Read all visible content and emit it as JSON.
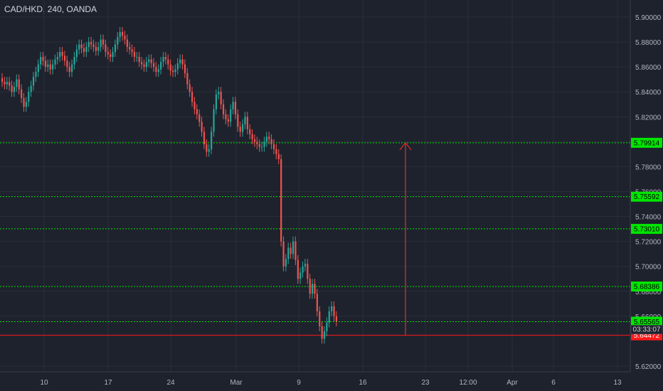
{
  "chart_data": {
    "type": "candlestick",
    "title": "CAD/HKD, 240, OANDA",
    "ylim": [
      5.614,
      5.905
    ],
    "y_ticks": [
      5.62,
      5.66,
      5.68,
      5.7,
      5.72,
      5.74,
      5.76,
      5.78,
      5.8,
      5.82,
      5.84,
      5.86,
      5.88,
      5.9
    ],
    "x_ticks": [
      "10",
      "17",
      "24",
      "Mar",
      "9",
      "16",
      "23",
      "12:00",
      "Apr",
      "6",
      "13"
    ],
    "grid": true,
    "horizontal_levels": [
      {
        "label": "5.79914",
        "value": 5.79914,
        "color": "#00e600",
        "text_color": "#000000"
      },
      {
        "label": "5.75592",
        "value": 5.75592,
        "color": "#00e600",
        "text_color": "#000000"
      },
      {
        "label": "5.73010",
        "value": 5.7301,
        "color": "#00e600",
        "text_color": "#000000"
      },
      {
        "label": "5.68386",
        "value": 5.68386,
        "color": "#00e600",
        "text_color": "#000000"
      },
      {
        "label": "5.65565",
        "value": 5.65565,
        "color": "#00e600",
        "text_color": "#000000"
      },
      {
        "label": "5.64472",
        "value": 5.64472,
        "color": "#ff1a1a",
        "text_color": "#ffffff"
      }
    ],
    "countdown": "03:33:07",
    "projection_arrow": {
      "from": 5.64472,
      "to": 5.79914,
      "color": "#d32f2f"
    },
    "up_color": "#26a69a",
    "down_color": "#ef5350",
    "close_path": [
      5.848,
      5.846,
      5.848,
      5.845,
      5.84,
      5.844,
      5.85,
      5.842,
      5.835,
      5.828,
      5.832,
      5.84,
      5.845,
      5.852,
      5.856,
      5.862,
      5.868,
      5.865,
      5.86,
      5.862,
      5.858,
      5.862,
      5.866,
      5.868,
      5.872,
      5.869,
      5.865,
      5.86,
      5.856,
      5.862,
      5.868,
      5.874,
      5.878,
      5.875,
      5.872,
      5.876,
      5.88,
      5.878,
      5.876,
      5.873,
      5.876,
      5.882,
      5.878,
      5.872,
      5.87,
      5.868,
      5.872,
      5.878,
      5.884,
      5.888,
      5.885,
      5.882,
      5.876,
      5.874,
      5.872,
      5.868,
      5.868,
      5.864,
      5.862,
      5.86,
      5.864,
      5.866,
      5.863,
      5.86,
      5.856,
      5.858,
      5.864,
      5.868,
      5.866,
      5.862,
      5.857,
      5.856,
      5.858,
      5.863,
      5.866,
      5.862,
      5.855,
      5.846,
      5.84,
      5.832,
      5.826,
      5.822,
      5.816,
      5.808,
      5.798,
      5.792,
      5.794,
      5.808,
      5.826,
      5.838,
      5.84,
      5.83,
      5.822,
      5.818,
      5.816,
      5.826,
      5.832,
      5.822,
      5.812,
      5.808,
      5.814,
      5.82,
      5.81,
      5.806,
      5.802,
      5.8,
      5.798,
      5.796,
      5.796,
      5.8,
      5.804,
      5.802,
      5.798,
      5.794,
      5.79,
      5.786,
      5.72,
      5.7,
      5.706,
      5.715,
      5.71,
      5.72,
      5.705,
      5.69,
      5.695,
      5.7,
      5.702,
      5.69,
      5.678,
      5.686,
      5.678,
      5.664,
      5.652,
      5.642,
      5.648,
      5.655,
      5.664,
      5.668,
      5.66,
      5.656
    ]
  }
}
